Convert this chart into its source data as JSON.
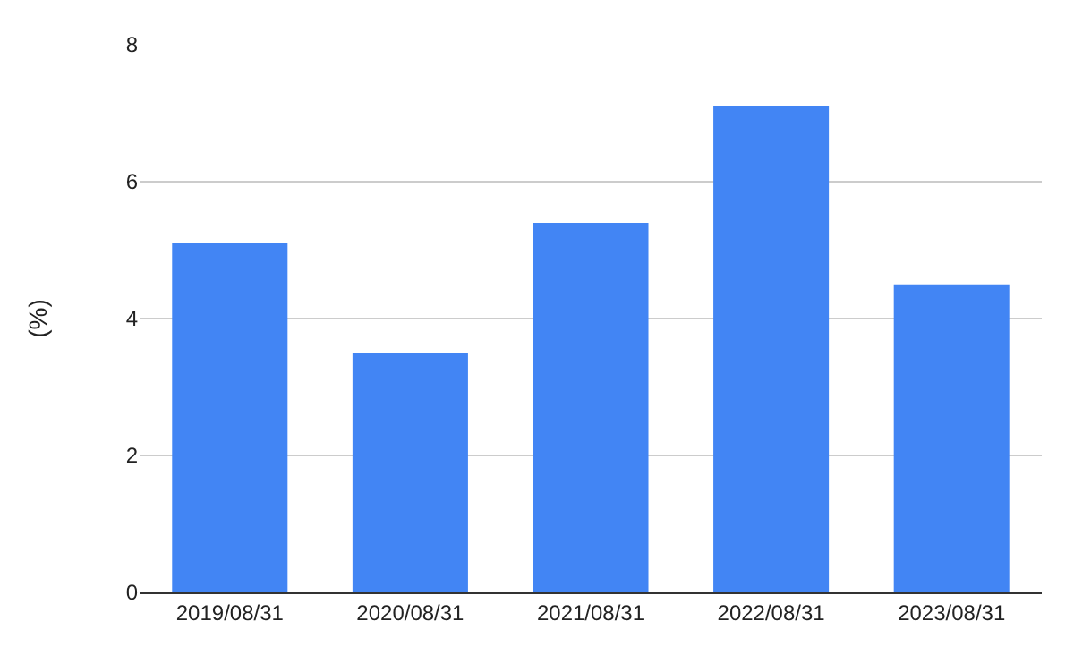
{
  "chart_data": {
    "type": "bar",
    "ylabel": "(%)",
    "categories": [
      "2019/08/31",
      "2020/08/31",
      "2021/08/31",
      "2022/08/31",
      "2023/08/31"
    ],
    "values": [
      5.1,
      3.5,
      5.4,
      7.1,
      4.5
    ],
    "color": "#4285f4",
    "ylim": [
      0,
      8
    ],
    "yticks": [
      0,
      2,
      4,
      6,
      8
    ],
    "grid": "y",
    "legend": false
  }
}
